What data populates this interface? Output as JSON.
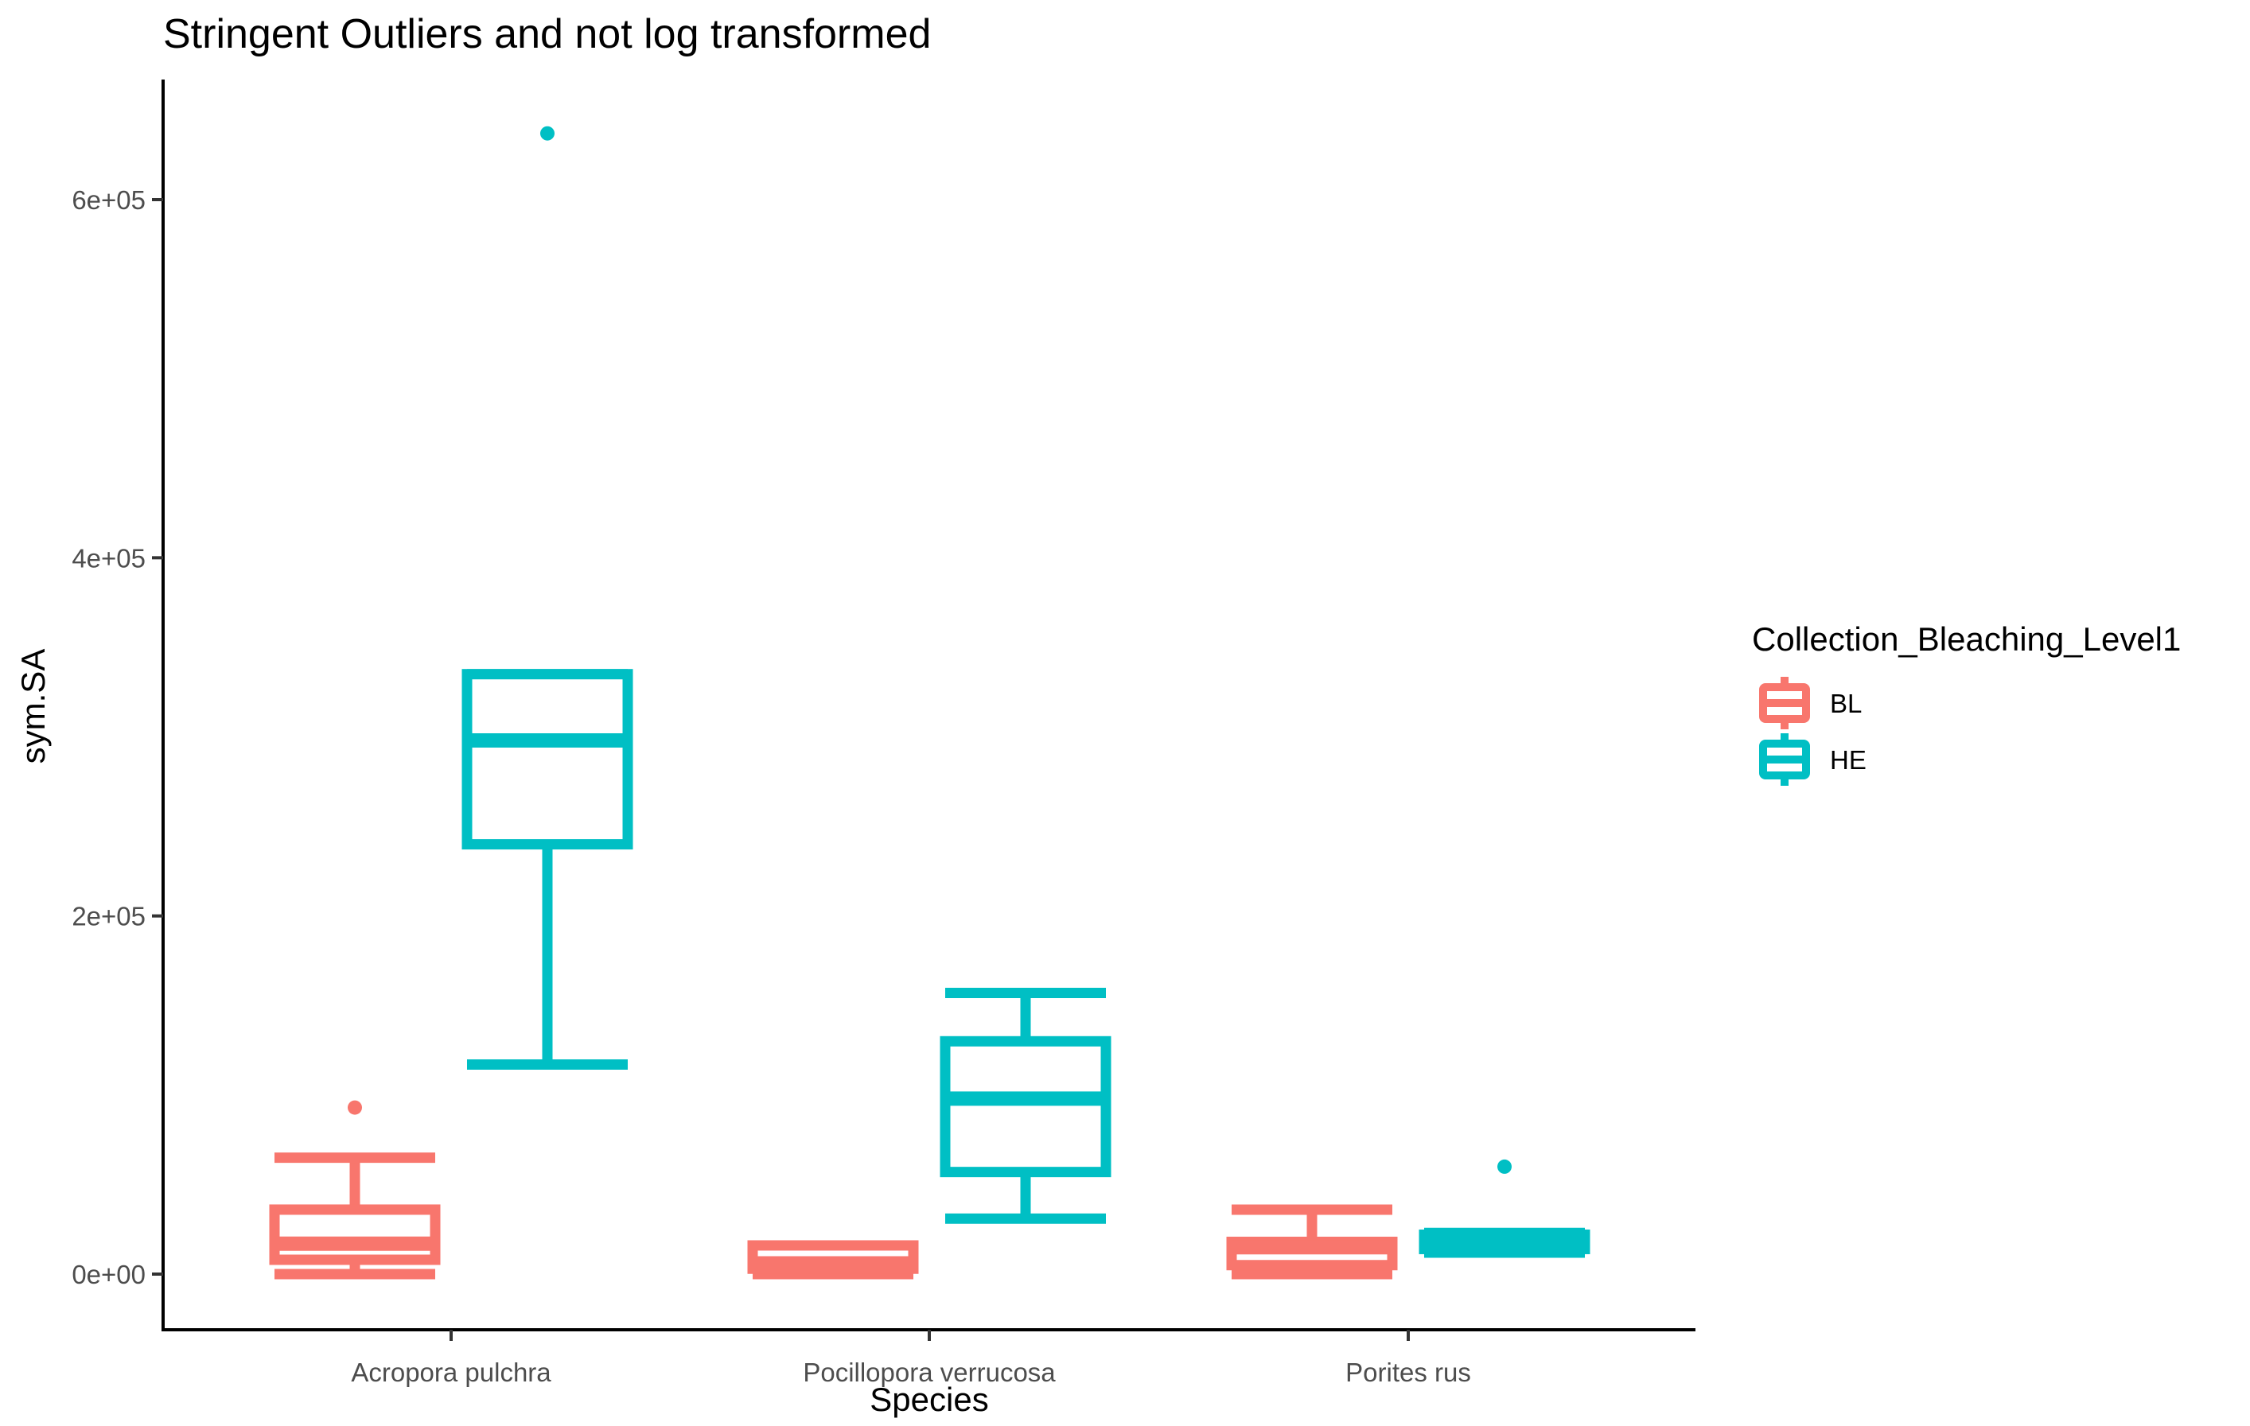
{
  "chart_data": {
    "type": "boxplot",
    "title": "Stringent Outliers and not log transformed",
    "xlabel": "Species",
    "ylabel": "sym.SA",
    "categories": [
      "Acropora pulchra",
      "Pocillopora verrucosa",
      "Porites rus"
    ],
    "ylim": [
      -30000,
      670000
    ],
    "yticks": [
      0,
      200000,
      400000,
      600000
    ],
    "ytick_labels": [
      "0e+00",
      "2e+05",
      "4e+05",
      "6e+05"
    ],
    "grid": false,
    "legend": {
      "title": "Collection_Bleaching_Level1",
      "position": "right",
      "entries": [
        "BL",
        "HE"
      ]
    },
    "series": [
      {
        "name": "BL",
        "color": "#F8766D",
        "boxes": [
          {
            "whisker_low": 0,
            "q1": 8000,
            "median": 17000,
            "q3": 36000,
            "whisker_high": 65000,
            "outliers": [
              93000
            ]
          },
          {
            "whisker_low": 0,
            "q1": 3000,
            "median": 6000,
            "q3": 16000,
            "whisker_high": 16000,
            "outliers": []
          },
          {
            "whisker_low": 0,
            "q1": 5000,
            "median": 15000,
            "q3": 18000,
            "whisker_high": 36000,
            "outliers": []
          }
        ]
      },
      {
        "name": "HE",
        "color": "#00BFC4",
        "boxes": [
          {
            "whisker_low": 117000,
            "q1": 240000,
            "median": 298000,
            "q3": 335000,
            "whisker_high": 335000,
            "outliers": [
              637000
            ]
          },
          {
            "whisker_low": 31000,
            "q1": 57000,
            "median": 98000,
            "q3": 130000,
            "whisker_high": 157000,
            "outliers": []
          },
          {
            "whisker_low": 12000,
            "q1": 14000,
            "median": 18000,
            "q3": 22000,
            "whisker_high": 23000,
            "outliers": [
              60000
            ]
          }
        ]
      }
    ]
  }
}
